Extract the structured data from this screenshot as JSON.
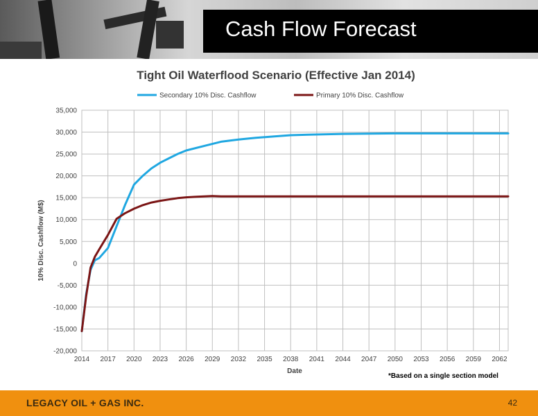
{
  "header": {
    "title": "Cash Flow Forecast"
  },
  "footer": {
    "company": "LEGACY OIL + GAS INC.",
    "page": "42"
  },
  "note": "*Based on a single section model",
  "chart_data": {
    "type": "line",
    "title": "Tight Oil Waterflood Scenario (Effective Jan 2014)",
    "xlabel": "Date",
    "ylabel": "10% Disc. Cashflow (M$)",
    "xlim": [
      2014,
      2063
    ],
    "ylim": [
      -20000,
      35000
    ],
    "x_ticks": [
      "2014",
      "2017",
      "2020",
      "2023",
      "2026",
      "2029",
      "2032",
      "2035",
      "2038",
      "2041",
      "2044",
      "2047",
      "2050",
      "2053",
      "2056",
      "2059",
      "2062"
    ],
    "y_ticks": [
      "35,000",
      "30,000",
      "25,000",
      "20,000",
      "15,000",
      "10,000",
      "5,000",
      "0",
      "-5,000",
      "-10,000",
      "-15,000",
      "-20,000"
    ],
    "grid": true,
    "legend": "top",
    "series": [
      {
        "name": "Secondary 10% Disc. Cashflow",
        "color": "#1fa7e1",
        "x": [
          2014,
          2014.5,
          2015,
          2015.5,
          2016,
          2017,
          2018,
          2019,
          2020,
          2021,
          2022,
          2023,
          2024,
          2025,
          2026,
          2028,
          2030,
          2032,
          2034,
          2036,
          2038,
          2040,
          2044,
          2050,
          2063
        ],
        "y": [
          -15500,
          -7000,
          -1500,
          700,
          1200,
          3500,
          8500,
          13500,
          18000,
          20000,
          21700,
          23000,
          24000,
          25000,
          25800,
          26800,
          27800,
          28300,
          28700,
          29000,
          29300,
          29400,
          29600,
          29700,
          29700
        ]
      },
      {
        "name": "Primary 10% Disc. Cashflow",
        "color": "#7b1515",
        "x": [
          2014,
          2014.5,
          2015,
          2015.5,
          2016,
          2017,
          2018,
          2019,
          2020,
          2021,
          2022,
          2023,
          2024,
          2025,
          2026,
          2027,
          2029,
          2030,
          2063
        ],
        "y": [
          -15500,
          -7500,
          -1000,
          1500,
          3200,
          6500,
          10200,
          11500,
          12500,
          13300,
          13900,
          14300,
          14600,
          14900,
          15100,
          15200,
          15400,
          15300,
          15300
        ]
      }
    ]
  }
}
